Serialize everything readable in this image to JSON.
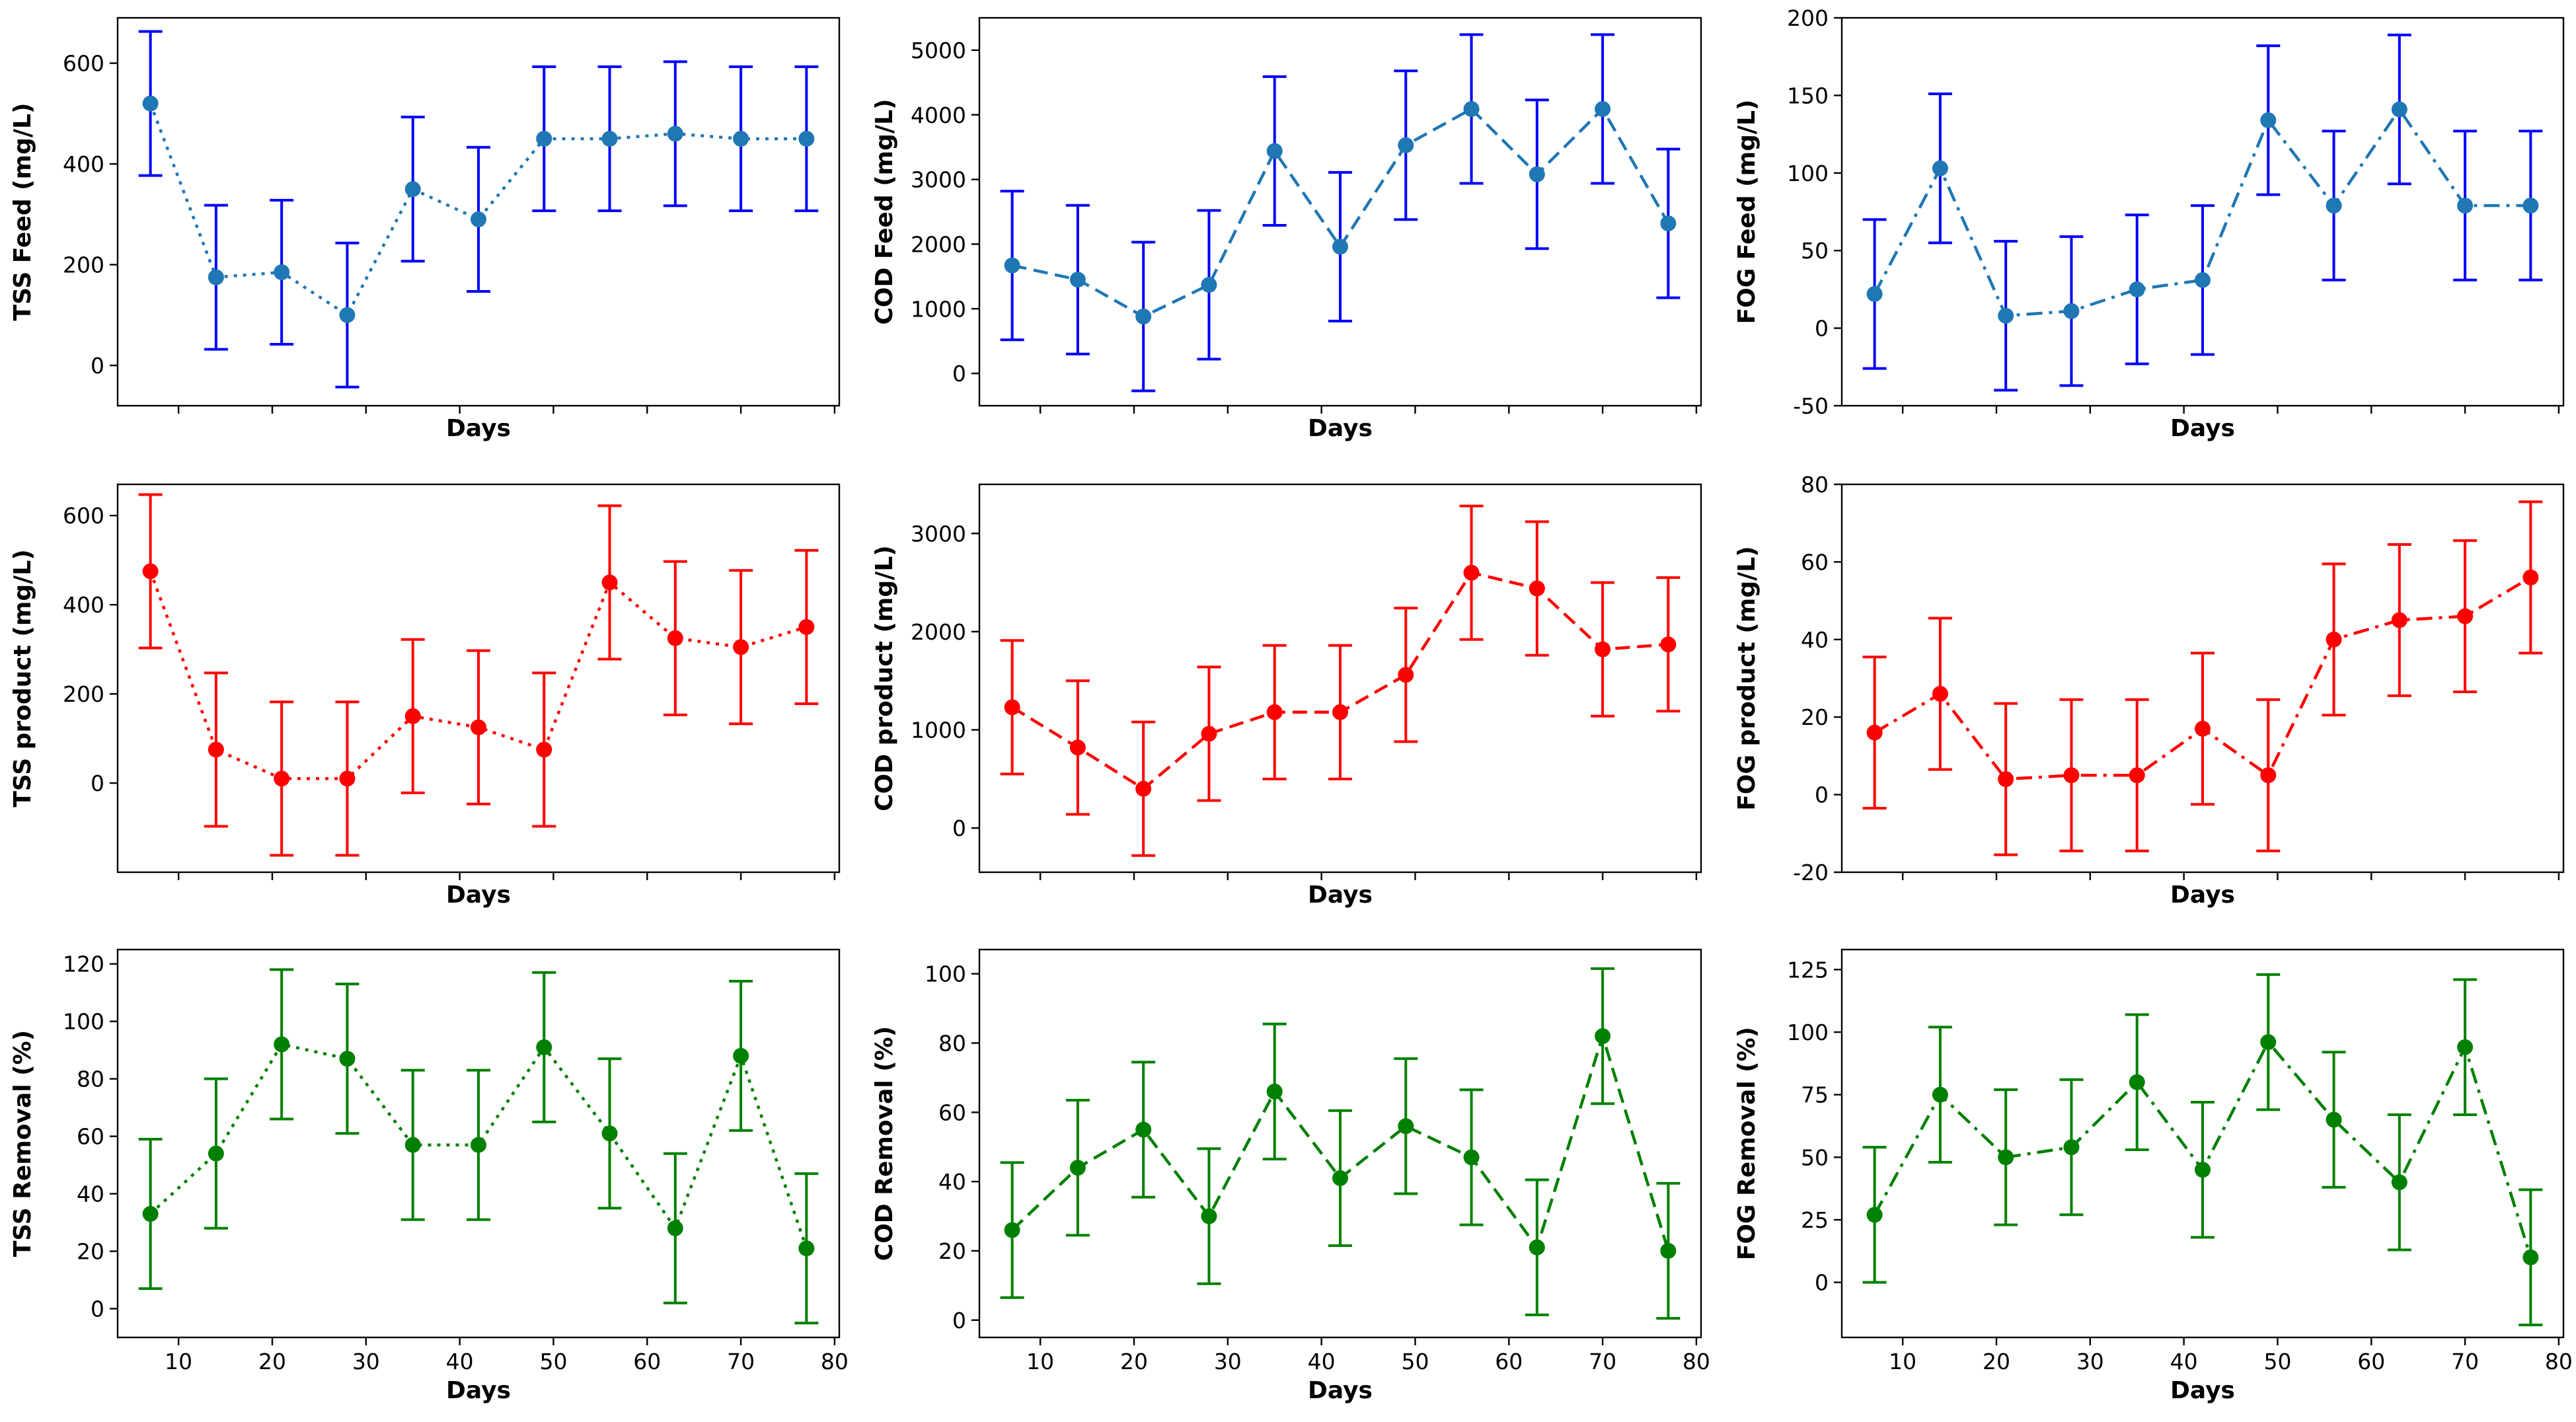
{
  "chart_data": [
    {
      "type": "line",
      "row": 0,
      "col": 0,
      "xlabel": "Days",
      "ylabel": "TSS Feed (mg/L)",
      "color": "#1f77b4",
      "errorbar_color": "#0000ff",
      "linestyle": "dotted",
      "x": [
        7,
        14,
        21,
        28,
        35,
        42,
        49,
        56,
        63,
        70,
        77
      ],
      "values": [
        520,
        175,
        185,
        100,
        350,
        290,
        450,
        450,
        460,
        450,
        450
      ],
      "errors": [
        143,
        143,
        143,
        143,
        143,
        143,
        143,
        143,
        143,
        143,
        143
      ],
      "xlim": [
        3.5,
        80.5
      ],
      "ylim": [
        -80,
        690
      ],
      "yticks": [
        0,
        200,
        400,
        600
      ],
      "xticks": [
        10,
        20,
        30,
        40,
        50,
        60,
        70,
        80
      ],
      "show_xtick_labels": false
    },
    {
      "type": "line",
      "row": 0,
      "col": 1,
      "xlabel": "Days",
      "ylabel": "COD Feed (mg/L)",
      "color": "#1f77b4",
      "errorbar_color": "#0000ff",
      "linestyle": "dashed",
      "x": [
        7,
        14,
        21,
        28,
        35,
        42,
        49,
        56,
        63,
        70,
        77
      ],
      "values": [
        1670,
        1450,
        880,
        1370,
        3440,
        1960,
        3530,
        4090,
        3080,
        4090,
        2320
      ],
      "errors": [
        1150,
        1150,
        1150,
        1150,
        1150,
        1150,
        1150,
        1150,
        1150,
        1150,
        1150
      ],
      "xlim": [
        3.5,
        80.5
      ],
      "ylim": [
        -500,
        5500
      ],
      "yticks": [
        0,
        1000,
        2000,
        3000,
        4000,
        5000
      ],
      "xticks": [
        10,
        20,
        30,
        40,
        50,
        60,
        70,
        80
      ],
      "show_xtick_labels": false
    },
    {
      "type": "line",
      "row": 0,
      "col": 2,
      "xlabel": "Days",
      "ylabel": "FOG Feed (mg/L)",
      "color": "#1f77b4",
      "errorbar_color": "#0000ff",
      "linestyle": "dashdot",
      "x": [
        7,
        14,
        21,
        28,
        35,
        42,
        49,
        56,
        63,
        70,
        77
      ],
      "values": [
        22,
        103,
        8,
        11,
        25,
        31,
        134,
        79,
        141,
        79,
        79
      ],
      "errors": [
        48,
        48,
        48,
        48,
        48,
        48,
        48,
        48,
        48,
        48,
        48
      ],
      "xlim": [
        3.5,
        80.5
      ],
      "ylim": [
        -50,
        200
      ],
      "yticks": [
        -50,
        0,
        50,
        100,
        150,
        200
      ],
      "xticks": [
        10,
        20,
        30,
        40,
        50,
        60,
        70,
        80
      ],
      "show_xtick_labels": false
    },
    {
      "type": "line",
      "row": 1,
      "col": 0,
      "xlabel": "Days",
      "ylabel": "TSS product (mg/L)",
      "color": "#ff0000",
      "errorbar_color": "#ff0000",
      "linestyle": "dotted",
      "x": [
        7,
        14,
        21,
        28,
        35,
        42,
        49,
        56,
        63,
        70,
        77
      ],
      "values": [
        475,
        75,
        10,
        10,
        150,
        125,
        75,
        450,
        325,
        305,
        350
      ],
      "errors": [
        172,
        172,
        172,
        172,
        172,
        172,
        172,
        172,
        172,
        172,
        172
      ],
      "xlim": [
        3.5,
        80.5
      ],
      "ylim": [
        -200,
        670
      ],
      "yticks": [
        0,
        200,
        400,
        600
      ],
      "xticks": [
        10,
        20,
        30,
        40,
        50,
        60,
        70,
        80
      ],
      "show_xtick_labels": false
    },
    {
      "type": "line",
      "row": 1,
      "col": 1,
      "xlabel": "Days",
      "ylabel": "COD product (mg/L)",
      "color": "#ff0000",
      "errorbar_color": "#ff0000",
      "linestyle": "dashed",
      "x": [
        7,
        14,
        21,
        28,
        35,
        42,
        49,
        56,
        63,
        70,
        77
      ],
      "values": [
        1230,
        820,
        400,
        960,
        1180,
        1180,
        1560,
        2600,
        2440,
        1820,
        1870
      ],
      "errors": [
        680,
        680,
        680,
        680,
        680,
        680,
        680,
        680,
        680,
        680,
        680
      ],
      "xlim": [
        3.5,
        80.5
      ],
      "ylim": [
        -450,
        3500
      ],
      "yticks": [
        0,
        1000,
        2000,
        3000
      ],
      "xticks": [
        10,
        20,
        30,
        40,
        50,
        60,
        70,
        80
      ],
      "show_xtick_labels": false
    },
    {
      "type": "line",
      "row": 1,
      "col": 2,
      "xlabel": "Days",
      "ylabel": "FOG product (mg/L)",
      "color": "#ff0000",
      "errorbar_color": "#ff0000",
      "linestyle": "dashdot",
      "x": [
        7,
        14,
        21,
        28,
        35,
        42,
        49,
        56,
        63,
        70,
        77
      ],
      "values": [
        16,
        26,
        4,
        5,
        5,
        17,
        5,
        40,
        45,
        46,
        56
      ],
      "errors": [
        19.5,
        19.5,
        19.5,
        19.5,
        19.5,
        19.5,
        19.5,
        19.5,
        19.5,
        19.5,
        19.5
      ],
      "xlim": [
        3.5,
        80.5
      ],
      "ylim": [
        -20,
        80
      ],
      "yticks": [
        -20,
        0,
        20,
        40,
        60,
        80
      ],
      "xticks": [
        10,
        20,
        30,
        40,
        50,
        60,
        70,
        80
      ],
      "show_xtick_labels": false
    },
    {
      "type": "line",
      "row": 2,
      "col": 0,
      "xlabel": "Days",
      "ylabel": "TSS Removal (%)",
      "color": "#008000",
      "errorbar_color": "#008000",
      "linestyle": "dotted",
      "x": [
        7,
        14,
        21,
        28,
        35,
        42,
        49,
        56,
        63,
        70,
        77
      ],
      "values": [
        33,
        54,
        92,
        87,
        57,
        57,
        91,
        61,
        28,
        88,
        21
      ],
      "errors": [
        26,
        26,
        26,
        26,
        26,
        26,
        26,
        26,
        26,
        26,
        26
      ],
      "xlim": [
        3.5,
        80.5
      ],
      "ylim": [
        -10,
        125
      ],
      "yticks": [
        0,
        20,
        40,
        60,
        80,
        100,
        120
      ],
      "xticks": [
        10,
        20,
        30,
        40,
        50,
        60,
        70,
        80
      ],
      "show_xtick_labels": true
    },
    {
      "type": "line",
      "row": 2,
      "col": 1,
      "xlabel": "Days",
      "ylabel": "COD Removal (%)",
      "color": "#008000",
      "errorbar_color": "#008000",
      "linestyle": "dashed",
      "x": [
        7,
        14,
        21,
        28,
        35,
        42,
        49,
        56,
        63,
        70,
        77
      ],
      "values": [
        26,
        44,
        55,
        30,
        66,
        41,
        56,
        47,
        21,
        82,
        20
      ],
      "errors": [
        19.5,
        19.5,
        19.5,
        19.5,
        19.5,
        19.5,
        19.5,
        19.5,
        19.5,
        19.5,
        19.5
      ],
      "xlim": [
        3.5,
        80.5
      ],
      "ylim": [
        -5,
        107
      ],
      "yticks": [
        0,
        20,
        40,
        60,
        80,
        100
      ],
      "xticks": [
        10,
        20,
        30,
        40,
        50,
        60,
        70,
        80
      ],
      "show_xtick_labels": true
    },
    {
      "type": "line",
      "row": 2,
      "col": 2,
      "xlabel": "Days",
      "ylabel": "FOG Removal (%)",
      "color": "#008000",
      "errorbar_color": "#008000",
      "linestyle": "dashdot",
      "x": [
        7,
        14,
        21,
        28,
        35,
        42,
        49,
        56,
        63,
        70,
        77
      ],
      "values": [
        27,
        75,
        50,
        54,
        80,
        45,
        96,
        65,
        40,
        94,
        10
      ],
      "errors": [
        27,
        27,
        27,
        27,
        27,
        27,
        27,
        27,
        27,
        27,
        27
      ],
      "xlim": [
        3.5,
        80.5
      ],
      "ylim": [
        -22,
        133
      ],
      "yticks": [
        0,
        25,
        50,
        75,
        100,
        125
      ],
      "xticks": [
        10,
        20,
        30,
        40,
        50,
        60,
        70,
        80
      ],
      "show_xtick_labels": true
    }
  ]
}
